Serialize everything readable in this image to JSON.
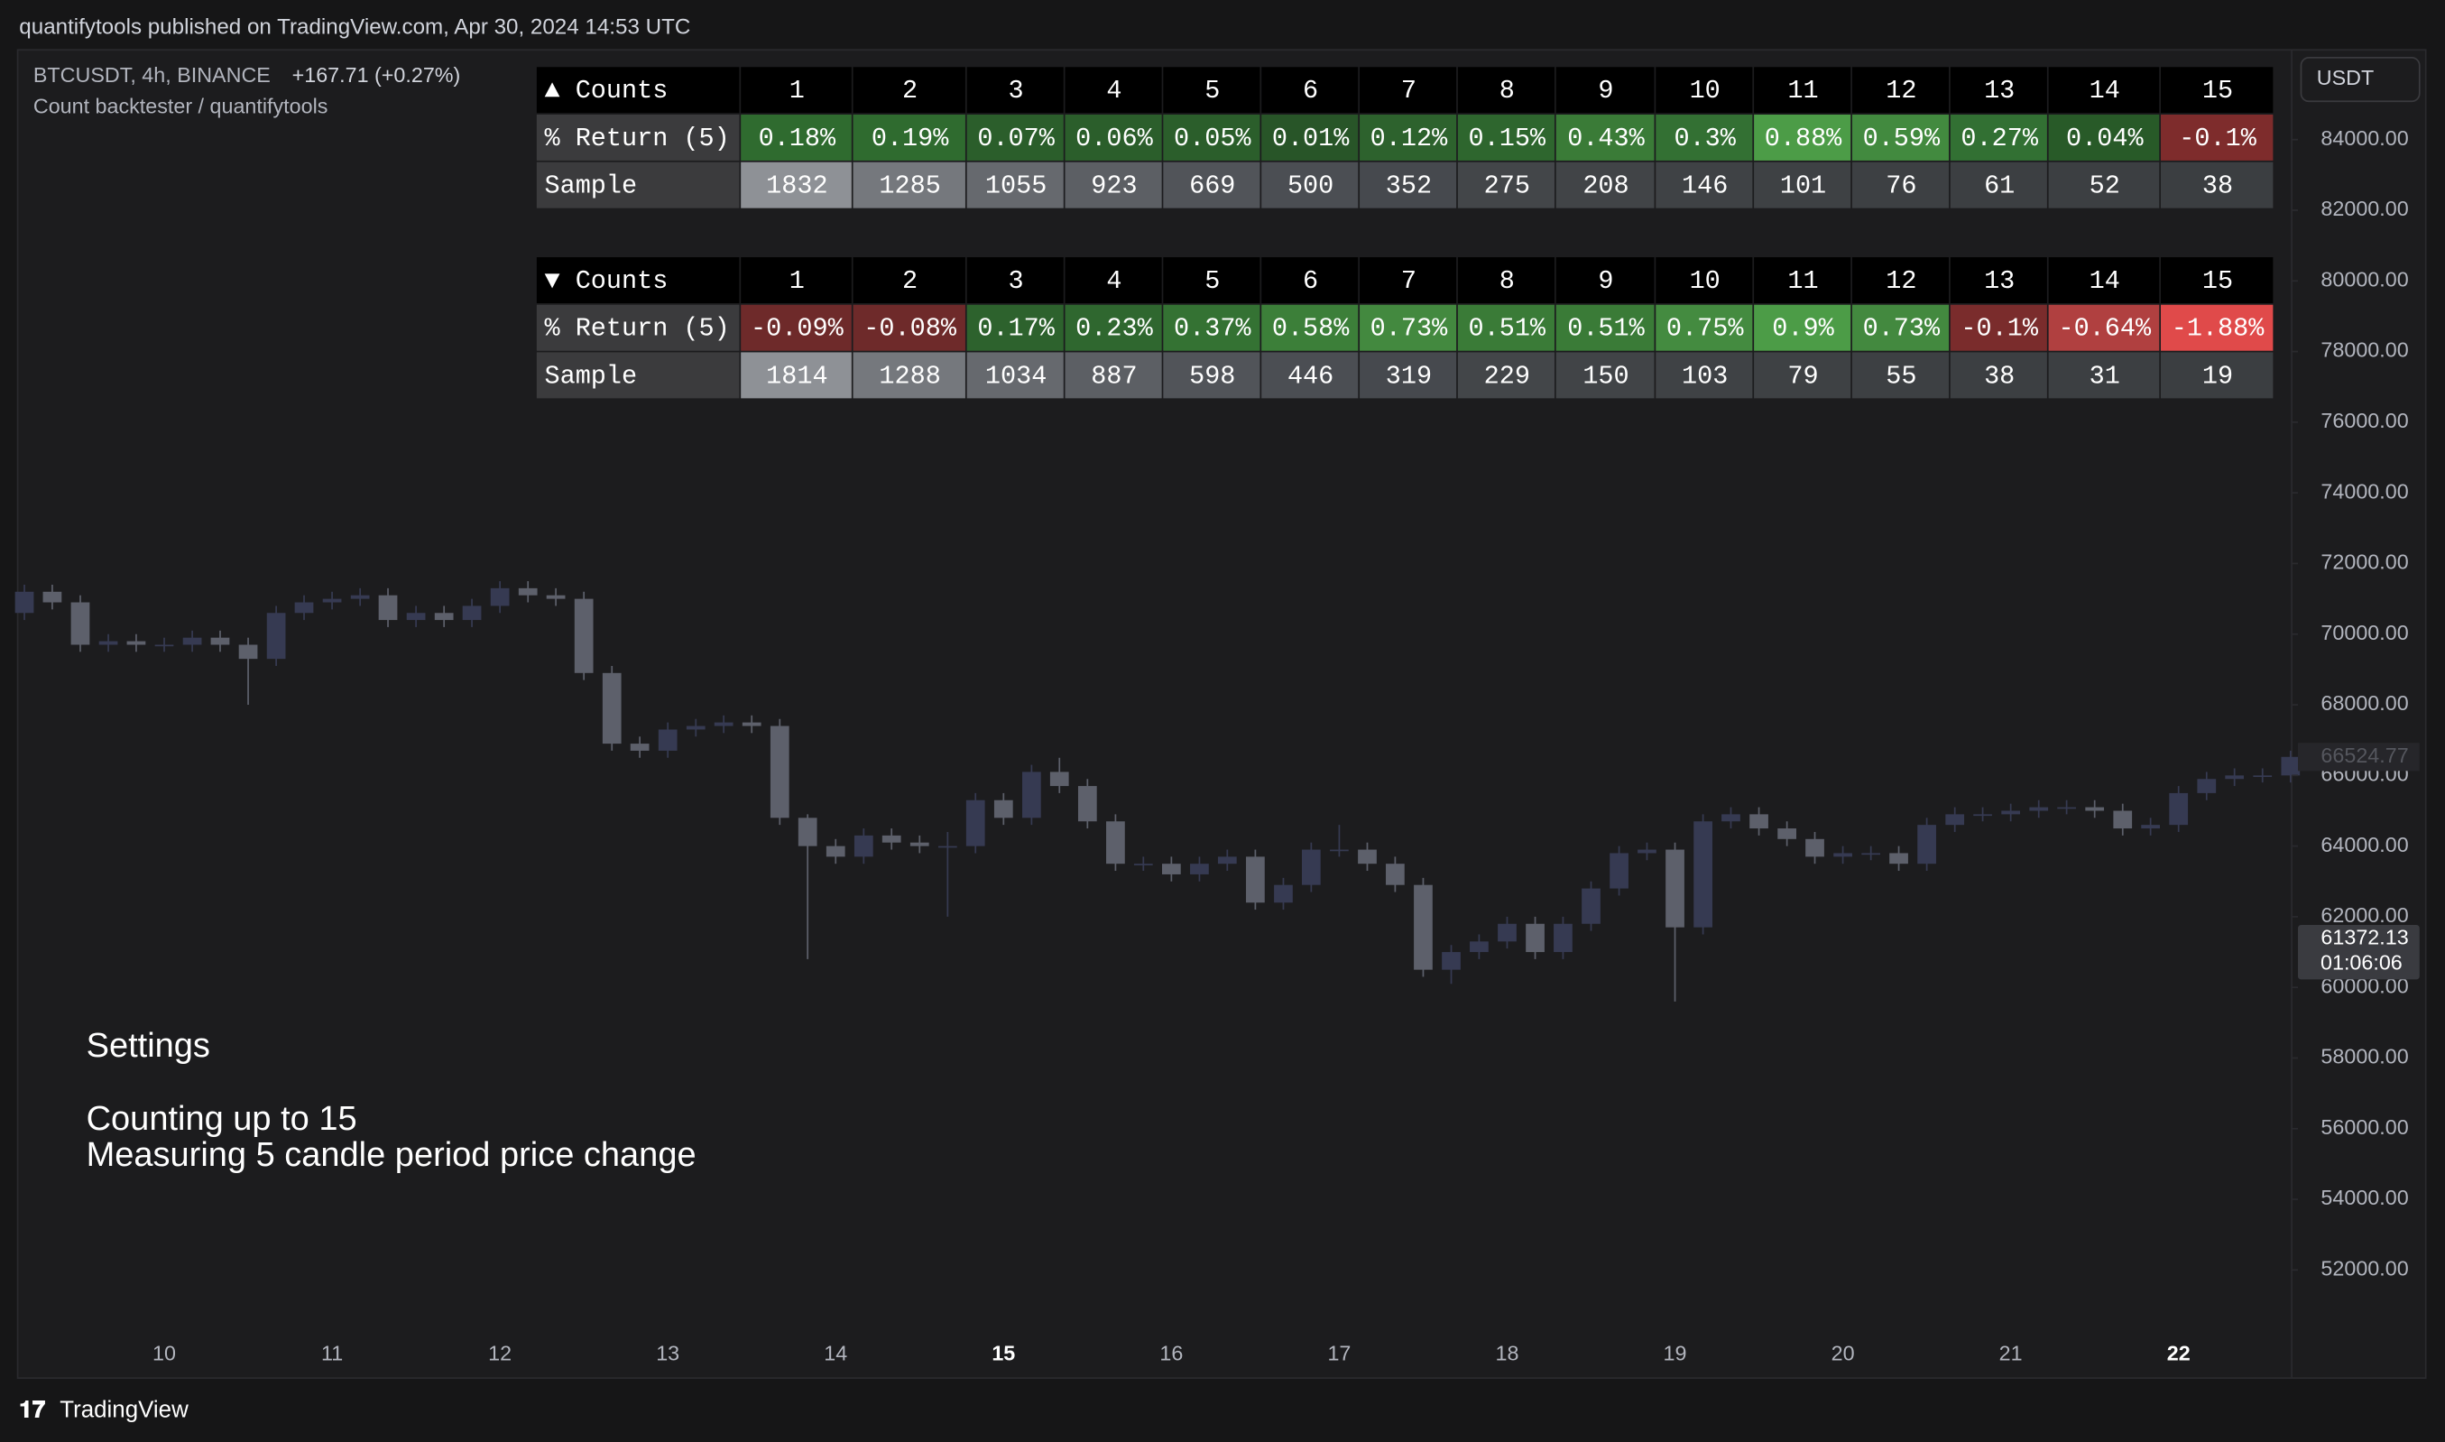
{
  "header": {
    "published": "quantifytools published on TradingView.com, Apr 30, 2024 14:53 UTC"
  },
  "legend": {
    "symbol": "BTCUSDT, 4h, BINANCE",
    "change": "+167.71 (+0.27%)",
    "indicator": "Count backtester / quantifytools"
  },
  "currency": "USDT",
  "tables": [
    {
      "header": [
        "▲ Counts",
        "1",
        "2",
        "3",
        "4",
        "5",
        "6",
        "7",
        "8",
        "9",
        "10",
        "11",
        "12",
        "13",
        "14",
        "15"
      ],
      "rows": [
        {
          "cells": [
            "% Return (5)",
            "0.18%",
            "0.19%",
            "0.07%",
            "0.06%",
            "0.05%",
            "0.01%",
            "0.12%",
            "0.15%",
            "0.43%",
            "0.3%",
            "0.88%",
            "0.59%",
            "0.27%",
            "0.04%",
            "-0.1%"
          ],
          "colors": [
            "#3b3b3d",
            "#2f6b2f",
            "#2f6b2f",
            "#2b5e2b",
            "#2b5e2b",
            "#2b5e2b",
            "#285528",
            "#2d622d",
            "#2e662e",
            "#3a7b37",
            "#337033",
            "#4c9c47",
            "#428a3f",
            "#327033",
            "#285a28",
            "#7e2c2c"
          ]
        },
        {
          "cells": [
            "Sample",
            1832,
            1285,
            1055,
            923,
            669,
            500,
            352,
            275,
            208,
            146,
            101,
            76,
            61,
            52,
            38
          ],
          "colors": [
            "#3b3b3d",
            "#8e9196",
            "#75787d",
            "#66696e",
            "#5c5f64",
            "#515459",
            "#4b4e53",
            "#46494e",
            "#434649",
            "#414447",
            "#3f4245",
            "#3e4144",
            "#3d4043",
            "#3c3f42",
            "#3c3f42",
            "#3b3e41"
          ]
        }
      ]
    },
    {
      "header": [
        "▼ Counts",
        "1",
        "2",
        "3",
        "4",
        "5",
        "6",
        "7",
        "8",
        "9",
        "10",
        "11",
        "12",
        "13",
        "14",
        "15"
      ],
      "rows": [
        {
          "cells": [
            "% Return (5)",
            "-0.09%",
            "-0.08%",
            "0.17%",
            "0.23%",
            "0.37%",
            "0.58%",
            "0.73%",
            "0.51%",
            "0.51%",
            "0.75%",
            "0.9%",
            "0.73%",
            "-0.1%",
            "-0.64%",
            "-1.88%"
          ],
          "colors": [
            "#3b3b3d",
            "#6e2a2a",
            "#6e2a2a",
            "#2d622d",
            "#2f672f",
            "#347233",
            "#3c7f39",
            "#43893f",
            "#3a7b37",
            "#3a7b37",
            "#448b40",
            "#4c9c47",
            "#43893f",
            "#7a2c2c",
            "#b04040",
            "#e04a4a"
          ]
        },
        {
          "cells": [
            "Sample",
            1814,
            1288,
            1034,
            887,
            598,
            446,
            319,
            229,
            150,
            103,
            79,
            55,
            38,
            31,
            19
          ],
          "colors": [
            "#3b3b3d",
            "#8e9196",
            "#75787d",
            "#66696e",
            "#5c5f64",
            "#515459",
            "#4b4e53",
            "#46494e",
            "#434649",
            "#414447",
            "#3f4245",
            "#3e4144",
            "#3d4043",
            "#3c3f42",
            "#3c3f42",
            "#3b3e41"
          ]
        }
      ]
    }
  ],
  "settings": {
    "title": "Settings",
    "lines": [
      "Counting up to 15",
      "Measuring 5 candle period price change"
    ]
  },
  "footer": "TradingView",
  "chart_data": {
    "type": "candlestick",
    "x": [
      9.167,
      9.333,
      9.5,
      9.667,
      9.833,
      10,
      10.167,
      10.333,
      10.5,
      10.667,
      10.833,
      11,
      11.167,
      11.333,
      11.5,
      11.667,
      11.833,
      12,
      12.167,
      12.333,
      12.5,
      12.667,
      12.833,
      13,
      13.167,
      13.333,
      13.5,
      13.667,
      13.833,
      14,
      14.167,
      14.333,
      14.5,
      14.667,
      14.833,
      15,
      15.167,
      15.333,
      15.5,
      15.667,
      15.833,
      16,
      16.167,
      16.333,
      16.5,
      16.667,
      16.833,
      17,
      17.167,
      17.333,
      17.5,
      17.667,
      17.833,
      18,
      18.167,
      18.333,
      18.5,
      18.667,
      18.833,
      19,
      19.167,
      19.333,
      19.5,
      19.667,
      19.833,
      20,
      20.167,
      20.333,
      20.5,
      20.667,
      20.833,
      21,
      21.167,
      21.333,
      21.5,
      21.667,
      21.833,
      22,
      22.167,
      22.333,
      22.5,
      22.667
    ],
    "open": [
      70600,
      71200,
      70900,
      69700,
      69800,
      69700,
      69700,
      69900,
      69700,
      69300,
      70600,
      70900,
      71000,
      71100,
      70400,
      70600,
      70400,
      70800,
      71300,
      71100,
      71000,
      68900,
      66900,
      66700,
      67300,
      67400,
      67500,
      67400,
      64800,
      64000,
      63700,
      64300,
      64100,
      64000,
      64000,
      65300,
      64800,
      66100,
      65700,
      64700,
      63500,
      63500,
      63200,
      63500,
      63700,
      62400,
      62900,
      63900,
      63900,
      63500,
      62900,
      60500,
      61000,
      61300,
      61800,
      61000,
      61800,
      62800,
      63800,
      63900,
      61700,
      64700,
      64900,
      64500,
      64200,
      63700,
      63800,
      63800,
      63500,
      64600,
      64900,
      64900,
      65000,
      65100,
      65100,
      65000,
      64500,
      64600,
      65500,
      65900,
      66000,
      66000
    ],
    "high": [
      71400,
      71400,
      71100,
      70000,
      70000,
      69900,
      70100,
      70100,
      69900,
      70800,
      71100,
      71200,
      71300,
      71300,
      70800,
      70800,
      71000,
      71500,
      71500,
      71300,
      71200,
      69100,
      67100,
      67500,
      67600,
      67700,
      67700,
      67600,
      64900,
      64200,
      64500,
      64500,
      64300,
      64400,
      65500,
      65500,
      66300,
      66500,
      65900,
      64900,
      63700,
      63700,
      63700,
      63900,
      63900,
      63100,
      64100,
      64600,
      64100,
      63700,
      63100,
      61200,
      61500,
      62000,
      62000,
      62000,
      63000,
      64000,
      64100,
      64100,
      64900,
      65100,
      65100,
      64700,
      64400,
      64000,
      64000,
      64000,
      64800,
      65100,
      65100,
      65200,
      65300,
      65300,
      65300,
      65200,
      64800,
      65700,
      66100,
      66200,
      66200,
      66700
    ],
    "low": [
      70400,
      70700,
      69500,
      69500,
      69500,
      69500,
      69500,
      69500,
      68000,
      69100,
      70400,
      70700,
      70800,
      70200,
      70200,
      70200,
      70200,
      70600,
      70900,
      70800,
      68700,
      66700,
      66500,
      66500,
      67100,
      67200,
      67200,
      64600,
      60800,
      63500,
      63500,
      63900,
      63800,
      62000,
      63800,
      64600,
      64600,
      65500,
      64500,
      63300,
      63300,
      63000,
      63000,
      63300,
      62200,
      62200,
      62700,
      63700,
      63300,
      62700,
      60300,
      60100,
      60800,
      61100,
      60800,
      60800,
      61600,
      62600,
      63600,
      59600,
      61500,
      64500,
      64300,
      64000,
      63500,
      63500,
      63600,
      63300,
      63300,
      64400,
      64700,
      64700,
      64800,
      64900,
      64800,
      64300,
      64300,
      64400,
      65300,
      65700,
      65800,
      65800
    ],
    "close": [
      71200,
      70900,
      69700,
      69800,
      69700,
      69700,
      69900,
      69700,
      69300,
      70600,
      70900,
      71000,
      71100,
      70400,
      70600,
      70400,
      70800,
      71300,
      71100,
      71000,
      68900,
      66900,
      66700,
      67300,
      67400,
      67500,
      67400,
      64800,
      64000,
      63700,
      64300,
      64100,
      64000,
      64000,
      65300,
      64800,
      66100,
      65700,
      64700,
      63500,
      63500,
      63200,
      63500,
      63700,
      62400,
      62900,
      63900,
      63900,
      63500,
      62900,
      60500,
      61000,
      61300,
      61800,
      61000,
      61800,
      62800,
      63800,
      63900,
      61700,
      64700,
      64900,
      64500,
      64200,
      63700,
      63800,
      63800,
      63500,
      64600,
      64900,
      64900,
      65000,
      65100,
      65100,
      65000,
      64500,
      64600,
      65500,
      65900,
      66000,
      66000,
      66524.77
    ],
    "up_color": "#363a52",
    "down_color": "#5d606b",
    "xlim": [
      9.127,
      22.674
    ],
    "ylim": [
      50440,
      86540
    ],
    "xticks": [
      10,
      11,
      12,
      13,
      14,
      15,
      16,
      17,
      18,
      19,
      20,
      21,
      22
    ],
    "xticks_bold": [
      15,
      22
    ],
    "yticks": [
      {
        "value": 84000,
        "label": "84000.00"
      },
      {
        "value": 82000,
        "label": "82000.00"
      },
      {
        "value": 80000,
        "label": "80000.00"
      },
      {
        "value": 78000,
        "label": "78000.00"
      },
      {
        "value": 76000,
        "label": "76000.00"
      },
      {
        "value": 74000,
        "label": "74000.00"
      },
      {
        "value": 72000,
        "label": "72000.00"
      },
      {
        "value": 70000,
        "label": "70000.00"
      },
      {
        "value": 68000,
        "label": "68000.00"
      },
      {
        "value": 66000,
        "label": "66000.00"
      },
      {
        "value": 64000,
        "label": "64000.00"
      },
      {
        "value": 62000,
        "label": "62000.00"
      },
      {
        "value": 60000,
        "label": "60000.00"
      },
      {
        "value": 58000,
        "label": "58000.00"
      },
      {
        "value": 56000,
        "label": "56000.00"
      },
      {
        "value": 54000,
        "label": "54000.00"
      },
      {
        "value": 52000,
        "label": "52000.00"
      }
    ],
    "last_price": 66524.77,
    "marker_price": 61372.13,
    "countdown": "01:06:06"
  }
}
